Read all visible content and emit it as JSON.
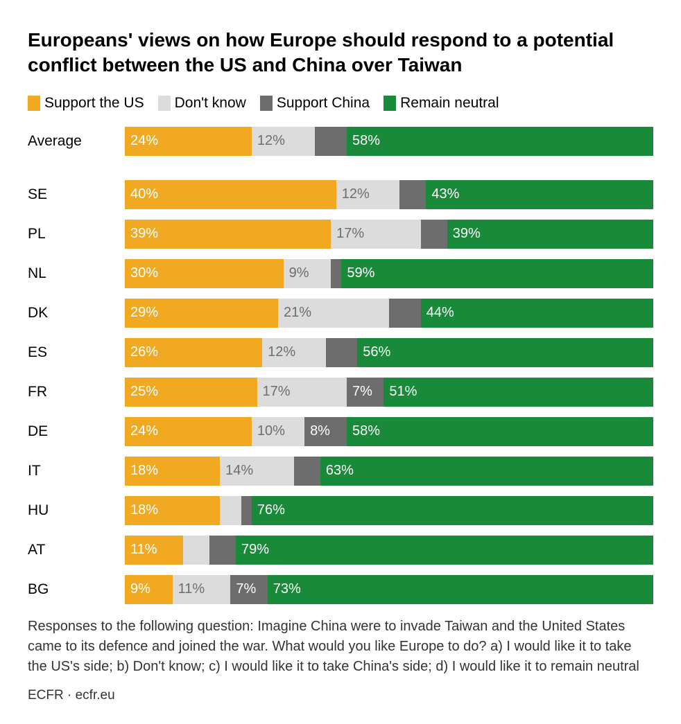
{
  "title": "Europeans' views on how Europe should respond to a potential conflict between the US and China over Taiwan",
  "chart": {
    "type": "stacked-bar-horizontal",
    "background_color": "#ffffff",
    "series": [
      {
        "key": "support_us",
        "label": "Support the US",
        "color": "#f2a922",
        "text_color": "#ffffff"
      },
      {
        "key": "dont_know",
        "label": "Don't know",
        "color": "#dcdcdc",
        "text_color": "#6d6d6d"
      },
      {
        "key": "support_china",
        "label": "Support China",
        "color": "#6d6d6d",
        "text_color": "#ffffff"
      },
      {
        "key": "neutral",
        "label": "Remain neutral",
        "color": "#198a3a",
        "text_color": "#ffffff"
      }
    ],
    "label_min_percent": 7,
    "rows": [
      {
        "label": "Average",
        "values": {
          "support_us": 24,
          "dont_know": 12,
          "support_china": 6,
          "neutral": 58
        },
        "hide_labels": [
          "support_china"
        ],
        "gap_after": true
      },
      {
        "label": "SE",
        "values": {
          "support_us": 40,
          "dont_know": 12,
          "support_china": 5,
          "neutral": 43
        },
        "hide_labels": [
          "support_china"
        ]
      },
      {
        "label": "PL",
        "values": {
          "support_us": 39,
          "dont_know": 17,
          "support_china": 5,
          "neutral": 39
        },
        "hide_labels": [
          "support_china"
        ]
      },
      {
        "label": "NL",
        "values": {
          "support_us": 30,
          "dont_know": 9,
          "support_china": 2,
          "neutral": 59
        },
        "hide_labels": [
          "support_china"
        ]
      },
      {
        "label": "DK",
        "values": {
          "support_us": 29,
          "dont_know": 21,
          "support_china": 6,
          "neutral": 44
        },
        "hide_labels": [
          "support_china"
        ]
      },
      {
        "label": "ES",
        "values": {
          "support_us": 26,
          "dont_know": 12,
          "support_china": 6,
          "neutral": 56
        },
        "hide_labels": [
          "support_china"
        ]
      },
      {
        "label": "FR",
        "values": {
          "support_us": 25,
          "dont_know": 17,
          "support_china": 7,
          "neutral": 51
        }
      },
      {
        "label": "DE",
        "values": {
          "support_us": 24,
          "dont_know": 10,
          "support_china": 8,
          "neutral": 58
        }
      },
      {
        "label": "IT",
        "values": {
          "support_us": 18,
          "dont_know": 14,
          "support_china": 5,
          "neutral": 63
        },
        "hide_labels": [
          "support_china"
        ]
      },
      {
        "label": "HU",
        "values": {
          "support_us": 18,
          "dont_know": 4,
          "support_china": 2,
          "neutral": 76
        },
        "hide_labels": [
          "dont_know",
          "support_china"
        ]
      },
      {
        "label": "AT",
        "values": {
          "support_us": 11,
          "dont_know": 5,
          "support_china": 5,
          "neutral": 79
        },
        "hide_labels": [
          "dont_know",
          "support_china"
        ]
      },
      {
        "label": "BG",
        "values": {
          "support_us": 9,
          "dont_know": 11,
          "support_china": 7,
          "neutral": 73
        }
      }
    ]
  },
  "footnote": "Responses to the following question: Imagine China were to invade Taiwan and the United States came to its defence and joined the war. What would you like Europe to do? a) I would like it to take the US's side; b) Don't know; c) I would like it to take China's side; d) I would like it to remain neutral",
  "source": "ECFR · ecfr.eu"
}
